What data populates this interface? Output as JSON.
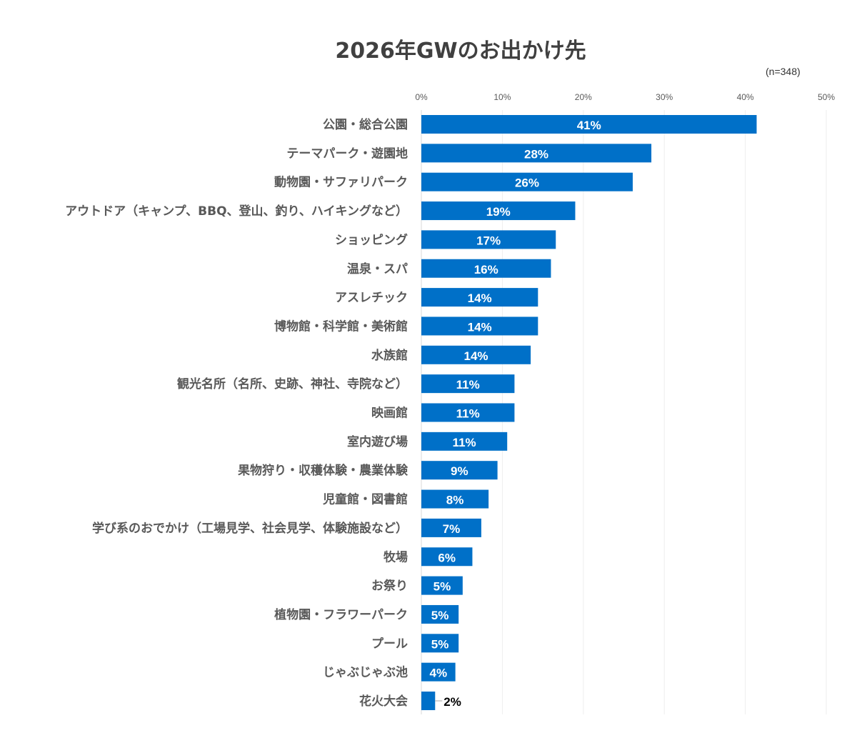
{
  "chart_data": {
    "type": "bar",
    "orientation": "horizontal",
    "title": "2026年GWのお出かけ先",
    "subtitle": "(n=348)",
    "xlim": [
      0,
      50
    ],
    "x_ticks": [
      "0%",
      "10%",
      "20%",
      "30%",
      "40%",
      "50%"
    ],
    "grid": true,
    "bar_color": "#0070c8",
    "categories": [
      "公園・総合公園",
      "テーマパーク・遊園地",
      "動物園・サファリパーク",
      "アウトドア（キャンプ、BBQ、登山、釣り、ハイキングなど）",
      "ショッピング",
      "温泉・スパ",
      "アスレチック",
      "博物館・科学館・美術館",
      "水族館",
      "観光名所（名所、史跡、神社、寺院など）",
      "映画館",
      "室内遊び場",
      "果物狩り・収穫体験・農業体験",
      "児童館・図書館",
      "学び系のおでかけ（工場見学、社会見学、体験施設など）",
      "牧場",
      "お祭り",
      "植物園・フラワーパーク",
      "プール",
      "じゃぶじゃぶ池",
      "花火大会"
    ],
    "values": [
      41.4,
      28.4,
      26.1,
      19.0,
      16.6,
      16.0,
      14.4,
      14.4,
      13.5,
      11.5,
      11.5,
      10.6,
      9.4,
      8.3,
      7.4,
      6.3,
      5.1,
      4.6,
      4.6,
      4.2,
      1.7
    ],
    "labels": [
      "41%",
      "28%",
      "26%",
      "19%",
      "17%",
      "16%",
      "14%",
      "14%",
      "14%",
      "11%",
      "11%",
      "11%",
      "9%",
      "8%",
      "7%",
      "6%",
      "5%",
      "5%",
      "5%",
      "4%",
      "2%"
    ]
  }
}
